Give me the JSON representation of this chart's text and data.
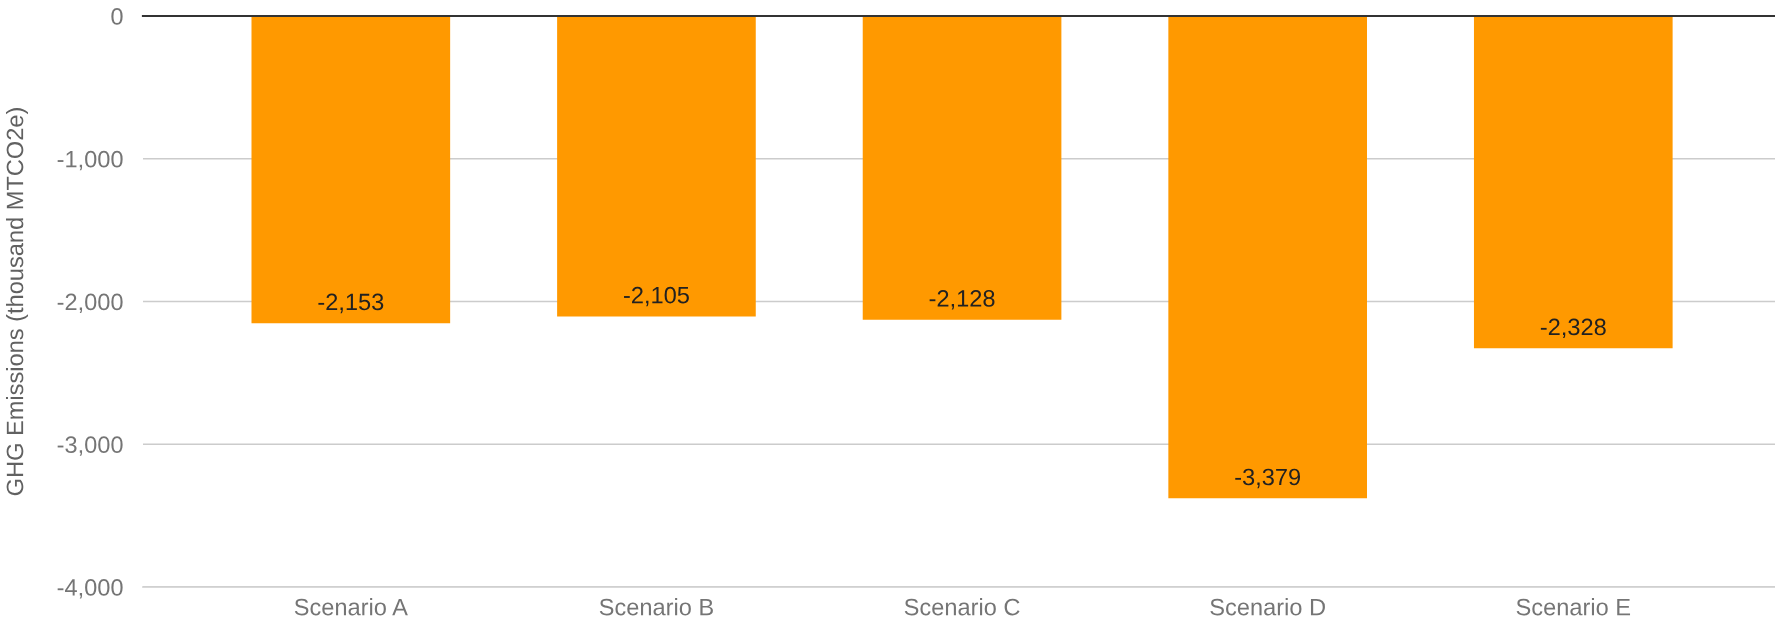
{
  "chart_data": {
    "type": "bar",
    "categories": [
      "Scenario A",
      "Scenario B",
      "Scenario C",
      "Scenario D",
      "Scenario E"
    ],
    "values": [
      -2153,
      -2105,
      -2128,
      -3379,
      -2328
    ],
    "color": "#ff9900",
    "value_labels": [
      "-2,153",
      "-2,105",
      "-2,128",
      "-3,379",
      "-2,328"
    ],
    "ylabel": "GHG Emissions (thousand MTCO2e)",
    "ylim": [
      -4000,
      0
    ],
    "yticks": [
      {
        "value": -4000,
        "label": "-4,000"
      },
      {
        "value": -3000,
        "label": "-3,000"
      },
      {
        "value": -2000,
        "label": "-2,000"
      },
      {
        "value": -1000,
        "label": "-1,000"
      },
      0
    ],
    "grid": "y"
  }
}
